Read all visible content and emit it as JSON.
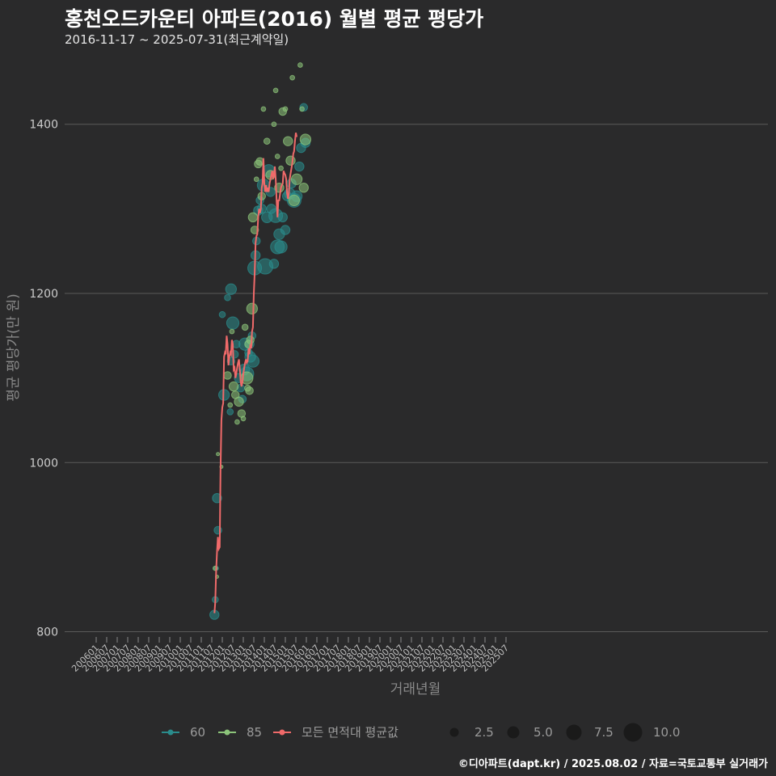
{
  "header": {
    "title": "홍천오드카운티 아파트(2016) 월별 평균 평당가",
    "subtitle": "2016-11-17 ~ 2025-07-31(최근계약일)"
  },
  "footer": {
    "credit": "©디아파트(dapt.kr) / 2025.08.02 / 자료=국토교통부 실거래가"
  },
  "colors": {
    "bg": "#2a2a2b",
    "grid": "#5a5a5a",
    "s60": "#2a8c8c",
    "s85": "#8cc47a",
    "avg": "#f06a6a"
  },
  "chart_data": {
    "type": "scatter",
    "title": "홍천오드카운티 아파트(2016) 월별 평균 평당가",
    "xlabel": "거래년월",
    "ylabel": "평균 평당가(만 원)",
    "ylim": [
      790,
      1480
    ],
    "y_ticks": [
      800,
      1000,
      1200,
      1400
    ],
    "x_ticks": [
      "200601",
      "200607",
      "200701",
      "200707",
      "200801",
      "200807",
      "200901",
      "200907",
      "201001",
      "201007",
      "201101",
      "201107",
      "201201",
      "201207",
      "201301",
      "201307",
      "201401",
      "201407",
      "201501",
      "201507",
      "201601",
      "201607",
      "201701",
      "201707",
      "201801",
      "201807",
      "201901",
      "201907",
      "202001",
      "202007",
      "202101",
      "202107",
      "202201",
      "202207",
      "202301",
      "202307",
      "202401",
      "202407",
      "202501",
      "202507"
    ],
    "legend": {
      "series": [
        {
          "key": "s60",
          "label": "60"
        },
        {
          "key": "s85",
          "label": "85"
        },
        {
          "key": "avg",
          "label": "모든 면적대 평균값"
        }
      ],
      "sizes": [
        "2.5",
        "5.0",
        "7.5",
        "10.0"
      ]
    },
    "series": [
      {
        "name": "60",
        "points": [
          [
            "2016-11",
            820,
            6
          ],
          [
            "2016-12",
            838,
            4
          ],
          [
            "2017-01",
            875,
            3
          ],
          [
            "2017-02",
            958,
            6
          ],
          [
            "2017-03",
            920,
            5
          ],
          [
            "2017-08",
            1175,
            4
          ],
          [
            "2017-10",
            1080,
            7
          ],
          [
            "2018-02",
            1195,
            4
          ],
          [
            "2018-05",
            1060,
            4
          ],
          [
            "2018-06",
            1205,
            7
          ],
          [
            "2018-06",
            1120,
            5
          ],
          [
            "2018-08",
            1165,
            8
          ],
          [
            "2018-10",
            1128,
            5
          ],
          [
            "2018-12",
            1140,
            5
          ],
          [
            "2019-03",
            1100,
            6
          ],
          [
            "2019-05",
            1088,
            5
          ],
          [
            "2019-07",
            1075,
            5
          ],
          [
            "2019-09",
            1110,
            7
          ],
          [
            "2019-10",
            1140,
            8
          ],
          [
            "2019-12",
            1105,
            9
          ],
          [
            "2020-02",
            1130,
            5
          ],
          [
            "2020-03",
            1140,
            6
          ],
          [
            "2020-04",
            1125,
            7
          ],
          [
            "2020-06",
            1150,
            5
          ],
          [
            "2020-07",
            1120,
            8
          ],
          [
            "2020-09",
            1230,
            9
          ],
          [
            "2020-10",
            1245,
            6
          ],
          [
            "2020-11",
            1262,
            5
          ],
          [
            "2021-01",
            1298,
            6
          ],
          [
            "2021-03",
            1310,
            5
          ],
          [
            "2021-05",
            1300,
            6
          ],
          [
            "2021-07",
            1328,
            8
          ],
          [
            "2021-09",
            1232,
            10
          ],
          [
            "2021-11",
            1290,
            7
          ],
          [
            "2022-01",
            1345,
            8
          ],
          [
            "2022-03",
            1320,
            6
          ],
          [
            "2022-04",
            1300,
            6
          ],
          [
            "2022-07",
            1235,
            6
          ],
          [
            "2022-09",
            1292,
            9
          ],
          [
            "2022-11",
            1255,
            9
          ],
          [
            "2023-01",
            1270,
            7
          ],
          [
            "2023-03",
            1255,
            8
          ],
          [
            "2023-05",
            1290,
            6
          ],
          [
            "2023-08",
            1275,
            6
          ],
          [
            "2023-10",
            1315,
            6
          ],
          [
            "2024-01",
            1318,
            7
          ],
          [
            "2024-03",
            1330,
            6
          ],
          [
            "2024-06",
            1310,
            9
          ],
          [
            "2024-09",
            1315,
            7
          ],
          [
            "2024-12",
            1350,
            6
          ],
          [
            "2025-02",
            1372,
            6
          ],
          [
            "2025-05",
            1420,
            5
          ],
          [
            "2025-07",
            1378,
            6
          ]
        ]
      },
      {
        "name": "85",
        "points": [
          [
            "2016-12",
            875,
            3
          ],
          [
            "2017-02",
            865,
            2
          ],
          [
            "2017-03",
            1010,
            2
          ],
          [
            "2017-07",
            995,
            2
          ],
          [
            "2018-02",
            1103,
            5
          ],
          [
            "2018-05",
            1068,
            3
          ],
          [
            "2018-07",
            1155,
            3
          ],
          [
            "2018-09",
            1090,
            6
          ],
          [
            "2018-11",
            1080,
            5
          ],
          [
            "2019-01",
            1048,
            3
          ],
          [
            "2019-03",
            1072,
            6
          ],
          [
            "2019-06",
            1058,
            5
          ],
          [
            "2019-08",
            1052,
            3
          ],
          [
            "2019-10",
            1160,
            4
          ],
          [
            "2019-12",
            1100,
            8
          ],
          [
            "2020-01",
            1088,
            4
          ],
          [
            "2020-02",
            1140,
            5
          ],
          [
            "2020-03",
            1085,
            5
          ],
          [
            "2020-04",
            1145,
            5
          ],
          [
            "2020-06",
            1182,
            7
          ],
          [
            "2020-07",
            1290,
            6
          ],
          [
            "2020-09",
            1275,
            5
          ],
          [
            "2020-11",
            1335,
            3
          ],
          [
            "2021-01",
            1353,
            5
          ],
          [
            "2021-03",
            1356,
            5
          ],
          [
            "2021-05",
            1315,
            5
          ],
          [
            "2021-07",
            1418,
            3
          ],
          [
            "2021-11",
            1380,
            4
          ],
          [
            "2022-03",
            1340,
            6
          ],
          [
            "2022-07",
            1400,
            3
          ],
          [
            "2022-09",
            1440,
            3
          ],
          [
            "2022-11",
            1362,
            3
          ],
          [
            "2023-01",
            1325,
            6
          ],
          [
            "2023-03",
            1348,
            3
          ],
          [
            "2023-05",
            1415,
            5
          ],
          [
            "2023-08",
            1418,
            3
          ],
          [
            "2023-11",
            1380,
            6
          ],
          [
            "2024-02",
            1357,
            6
          ],
          [
            "2024-04",
            1455,
            3
          ],
          [
            "2024-06",
            1310,
            7
          ],
          [
            "2024-09",
            1335,
            7
          ],
          [
            "2025-01",
            1470,
            3
          ],
          [
            "2025-03",
            1418,
            3
          ],
          [
            "2025-05",
            1325,
            6
          ],
          [
            "2025-07",
            1382,
            7
          ]
        ]
      },
      {
        "name": "모든 면적대 평균값",
        "line": [
          [
            "2016-11",
            822
          ],
          [
            "2016-12",
            835
          ],
          [
            "2017-01",
            872
          ],
          [
            "2017-02",
            895
          ],
          [
            "2017-03",
            912
          ],
          [
            "2017-04",
            898
          ],
          [
            "2017-05",
            900
          ],
          [
            "2017-06",
            990
          ],
          [
            "2017-07",
            1050
          ],
          [
            "2017-08",
            1065
          ],
          [
            "2017-09",
            1070
          ],
          [
            "2017-10",
            1125
          ],
          [
            "2017-11",
            1130
          ],
          [
            "2017-12",
            1128
          ],
          [
            "2018-01",
            1150
          ],
          [
            "2018-02",
            1140
          ],
          [
            "2018-03",
            1115
          ],
          [
            "2018-04",
            1125
          ],
          [
            "2018-05",
            1130
          ],
          [
            "2018-06",
            1128
          ],
          [
            "2018-07",
            1145
          ],
          [
            "2018-08",
            1140
          ],
          [
            "2018-09",
            1110
          ],
          [
            "2018-10",
            1112
          ],
          [
            "2018-11",
            1100
          ],
          [
            "2018-12",
            1105
          ],
          [
            "2019-01",
            1112
          ],
          [
            "2019-02",
            1118
          ],
          [
            "2019-03",
            1122
          ],
          [
            "2019-04",
            1110
          ],
          [
            "2019-05",
            1095
          ],
          [
            "2019-06",
            1090
          ],
          [
            "2019-07",
            1095
          ],
          [
            "2019-08",
            1105
          ],
          [
            "2019-09",
            1112
          ],
          [
            "2019-10",
            1118
          ],
          [
            "2019-11",
            1122
          ],
          [
            "2019-12",
            1118
          ],
          [
            "2020-01",
            1120
          ],
          [
            "2020-02",
            1135
          ],
          [
            "2020-03",
            1128
          ],
          [
            "2020-04",
            1140
          ],
          [
            "2020-05",
            1135
          ],
          [
            "2020-06",
            1155
          ],
          [
            "2020-07",
            1160
          ],
          [
            "2020-08",
            1200
          ],
          [
            "2020-09",
            1225
          ],
          [
            "2020-10",
            1260
          ],
          [
            "2020-11",
            1268
          ],
          [
            "2020-12",
            1270
          ],
          [
            "2021-01",
            1290
          ],
          [
            "2021-02",
            1300
          ],
          [
            "2021-03",
            1295
          ],
          [
            "2021-04",
            1300
          ],
          [
            "2021-05",
            1325
          ],
          [
            "2021-06",
            1330
          ],
          [
            "2021-07",
            1360
          ],
          [
            "2021-08",
            1330
          ],
          [
            "2021-09",
            1320
          ],
          [
            "2021-10",
            1328
          ],
          [
            "2021-11",
            1320
          ],
          [
            "2021-12",
            1325
          ],
          [
            "2022-01",
            1320
          ],
          [
            "2022-02",
            1330
          ],
          [
            "2022-03",
            1335
          ],
          [
            "2022-04",
            1340
          ],
          [
            "2022-05",
            1345
          ],
          [
            "2022-06",
            1335
          ],
          [
            "2022-07",
            1340
          ],
          [
            "2022-08",
            1350
          ],
          [
            "2022-09",
            1335
          ],
          [
            "2022-10",
            1310
          ],
          [
            "2022-11",
            1290
          ],
          [
            "2022-12",
            1310
          ],
          [
            "2023-01",
            1310
          ],
          [
            "2023-02",
            1318
          ],
          [
            "2023-03",
            1325
          ],
          [
            "2023-04",
            1328
          ],
          [
            "2023-05",
            1330
          ],
          [
            "2023-06",
            1345
          ],
          [
            "2023-07",
            1342
          ],
          [
            "2023-08",
            1340
          ],
          [
            "2023-09",
            1335
          ],
          [
            "2023-10",
            1318
          ],
          [
            "2023-11",
            1312
          ],
          [
            "2023-12",
            1318
          ],
          [
            "2024-01",
            1335
          ],
          [
            "2024-02",
            1342
          ],
          [
            "2024-03",
            1348
          ],
          [
            "2024-04",
            1355
          ],
          [
            "2024-05",
            1365
          ],
          [
            "2024-06",
            1368
          ],
          [
            "2024-07",
            1380
          ],
          [
            "2024-08",
            1390
          ],
          [
            "2024-09",
            1385
          ]
        ]
      }
    ]
  }
}
